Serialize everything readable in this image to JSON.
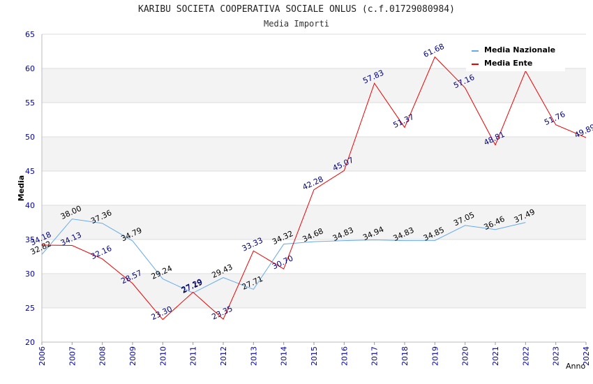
{
  "header": {
    "title": "KARIBU SOCIETA COOPERATIVA SOCIALE ONLUS (c.f.01729080984)",
    "subtitle": "Media Importi"
  },
  "chart_data": {
    "type": "line",
    "title": "KARIBU SOCIETA COOPERATIVA SOCIALE ONLUS (c.f.01729080984)",
    "subtitle": "Media Importi",
    "xlabel": "Anno",
    "ylabel": "Media",
    "ylim": [
      20,
      65
    ],
    "yticks": [
      20,
      25,
      30,
      35,
      40,
      45,
      50,
      55,
      60,
      65
    ],
    "categories": [
      "2006",
      "2007",
      "2008",
      "2009",
      "2010",
      "2011",
      "2012",
      "2013",
      "2014",
      "2015",
      "2016",
      "2017",
      "2018",
      "2019",
      "2020",
      "2021",
      "2022",
      "2023",
      "2024"
    ],
    "legend_position": "top-right",
    "grid": true,
    "series": [
      {
        "name": "Media Nazionale",
        "color": "#66aaee",
        "label_color": "#000000",
        "values": [
          32.82,
          38.0,
          37.36,
          34.79,
          29.24,
          27.19,
          29.43,
          27.71,
          34.32,
          34.68,
          34.83,
          34.94,
          34.83,
          34.85,
          37.05,
          36.46,
          37.49,
          null,
          null
        ],
        "labels": [
          "32.82",
          "38.00",
          "37.36",
          "34.79",
          "29.24",
          "27.19",
          "29.43",
          "27.71",
          "34.32",
          "34.68",
          "34.83",
          "34.94",
          "34.83",
          "34.85",
          "37.05",
          "36.46",
          "37.49",
          "",
          ""
        ]
      },
      {
        "name": "Media Ente",
        "color": "#ee0000",
        "label_color": "#000080",
        "values": [
          34.18,
          34.13,
          32.16,
          28.57,
          23.3,
          27.29,
          23.35,
          33.33,
          30.7,
          42.28,
          45.07,
          57.83,
          51.37,
          61.68,
          57.16,
          48.81,
          59.63,
          51.76,
          49.89
        ],
        "labels": [
          "34.18",
          "34.13",
          "32.16",
          "28.57",
          "23.30",
          "27.29",
          "23.35",
          "33.33",
          "30.70",
          "42.28",
          "45.07",
          "57.83",
          "51.37",
          "61.68",
          "57.16",
          "48.81",
          "",
          "51.76",
          "49.89"
        ]
      }
    ]
  }
}
